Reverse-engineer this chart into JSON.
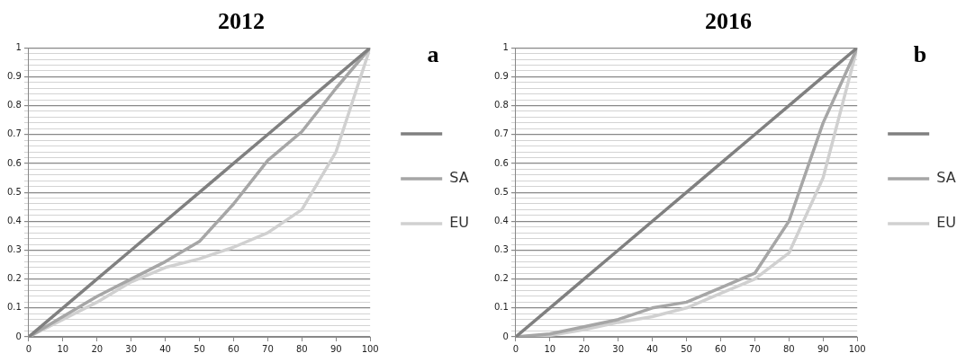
{
  "chart_data": [
    {
      "type": "line",
      "title": "2012",
      "annotations": [
        "a"
      ],
      "x": [
        0,
        10,
        20,
        30,
        40,
        50,
        60,
        70,
        80,
        90,
        100
      ],
      "series": [
        {
          "color": "#808080",
          "values": [
            0,
            0.1,
            0.2,
            0.3,
            0.4,
            0.5,
            0.6,
            0.7,
            0.8,
            0.9,
            1
          ]
        },
        {
          "name": "SA",
          "color": "#a6a6a6",
          "values": [
            0,
            0.07,
            0.14,
            0.2,
            0.26,
            0.33,
            0.46,
            0.61,
            0.71,
            0.86,
            1
          ]
        },
        {
          "name": "EU",
          "color": "#d0d0d0",
          "values": [
            0,
            0.06,
            0.12,
            0.19,
            0.24,
            0.27,
            0.31,
            0.36,
            0.44,
            0.64,
            1
          ]
        }
      ],
      "xlim": [
        0,
        100
      ],
      "xticks": [
        0,
        10,
        20,
        30,
        40,
        50,
        60,
        70,
        80,
        90,
        100
      ],
      "ylim": [
        0,
        1
      ],
      "yticks": [
        0,
        {
          "value": 0.02,
          "label": null
        },
        {
          "value": 0.04,
          "label": null
        },
        {
          "value": 0.06,
          "label": null
        },
        {
          "value": 0.08,
          "label": null
        },
        0.1,
        {
          "value": 0.12,
          "label": null
        },
        {
          "value": 0.14,
          "label": null
        },
        {
          "value": 0.16,
          "label": null
        },
        {
          "value": 0.18,
          "label": null
        },
        0.2,
        {
          "value": 0.22,
          "label": null
        },
        {
          "value": 0.24,
          "label": null
        },
        {
          "value": 0.26,
          "label": null
        },
        {
          "value": 0.28,
          "label": null
        },
        0.3,
        {
          "value": 0.32,
          "label": null
        },
        {
          "value": 0.34,
          "label": null
        },
        {
          "value": 0.36,
          "label": null
        },
        {
          "value": 0.38,
          "label": null
        },
        0.4,
        {
          "value": 0.42,
          "label": null
        },
        {
          "value": 0.44,
          "label": null
        },
        {
          "value": 0.46,
          "label": null
        },
        {
          "value": 0.48,
          "label": null
        },
        0.5,
        {
          "value": 0.52,
          "label": null
        },
        {
          "value": 0.54,
          "label": null
        },
        {
          "value": 0.56,
          "label": null
        },
        {
          "value": 0.58,
          "label": null
        },
        0.6,
        {
          "value": 0.62,
          "label": null
        },
        {
          "value": 0.64,
          "label": null
        },
        {
          "value": 0.66,
          "label": null
        },
        {
          "value": 0.68,
          "label": null
        },
        0.7,
        {
          "value": 0.72,
          "label": null
        },
        {
          "value": 0.74,
          "label": null
        },
        {
          "value": 0.76,
          "label": null
        },
        {
          "value": 0.78,
          "label": null
        },
        0.8,
        {
          "value": 0.82,
          "label": null
        },
        {
          "value": 0.84,
          "label": null
        },
        {
          "value": 0.86,
          "label": null
        },
        {
          "value": 0.88,
          "label": null
        },
        0.9,
        {
          "value": 0.92,
          "label": null
        },
        {
          "value": 0.94,
          "label": null
        },
        {
          "value": 0.96,
          "label": null
        },
        {
          "value": 0.98,
          "label": null
        },
        1
      ],
      "grid": "y",
      "legend": "right",
      "marker": "none",
      "line_style": "solid"
    },
    {
      "type": "line",
      "title": "2016",
      "annotations": [
        "b"
      ],
      "x": [
        0,
        10,
        20,
        30,
        40,
        50,
        60,
        70,
        80,
        90,
        100
      ],
      "series": [
        {
          "color": "#808080",
          "values": [
            0,
            0.1,
            0.2,
            0.3,
            0.4,
            0.5,
            0.6,
            0.7,
            0.8,
            0.9,
            1
          ]
        },
        {
          "name": "SA",
          "color": "#a6a6a6",
          "values": [
            0,
            0.01,
            0.035,
            0.06,
            0.1,
            0.12,
            0.17,
            0.22,
            0.4,
            0.74,
            1
          ]
        },
        {
          "name": "EU",
          "color": "#d0d0d0",
          "values": [
            0,
            0.005,
            0.025,
            0.05,
            0.07,
            0.1,
            0.15,
            0.2,
            0.29,
            0.55,
            1
          ]
        }
      ],
      "xlim": [
        0,
        100
      ],
      "xticks": [
        0,
        10,
        20,
        30,
        40,
        50,
        60,
        70,
        80,
        90,
        100
      ],
      "ylim": [
        0,
        1
      ],
      "yticks": [
        0,
        {
          "value": 0.02,
          "label": null
        },
        {
          "value": 0.04,
          "label": null
        },
        {
          "value": 0.06,
          "label": null
        },
        {
          "value": 0.08,
          "label": null
        },
        0.1,
        {
          "value": 0.12,
          "label": null
        },
        {
          "value": 0.14,
          "label": null
        },
        {
          "value": 0.16,
          "label": null
        },
        {
          "value": 0.18,
          "label": null
        },
        0.2,
        {
          "value": 0.22,
          "label": null
        },
        {
          "value": 0.24,
          "label": null
        },
        {
          "value": 0.26,
          "label": null
        },
        {
          "value": 0.28,
          "label": null
        },
        0.3,
        {
          "value": 0.32,
          "label": null
        },
        {
          "value": 0.34,
          "label": null
        },
        {
          "value": 0.36,
          "label": null
        },
        {
          "value": 0.38,
          "label": null
        },
        0.4,
        {
          "value": 0.42,
          "label": null
        },
        {
          "value": 0.44,
          "label": null
        },
        {
          "value": 0.46,
          "label": null
        },
        {
          "value": 0.48,
          "label": null
        },
        0.5,
        {
          "value": 0.52,
          "label": null
        },
        {
          "value": 0.54,
          "label": null
        },
        {
          "value": 0.56,
          "label": null
        },
        {
          "value": 0.58,
          "label": null
        },
        0.6,
        {
          "value": 0.62,
          "label": null
        },
        {
          "value": 0.64,
          "label": null
        },
        {
          "value": 0.66,
          "label": null
        },
        {
          "value": 0.68,
          "label": null
        },
        0.7,
        {
          "value": 0.72,
          "label": null
        },
        {
          "value": 0.74,
          "label": null
        },
        {
          "value": 0.76,
          "label": null
        },
        {
          "value": 0.78,
          "label": null
        },
        0.8,
        {
          "value": 0.82,
          "label": null
        },
        {
          "value": 0.84,
          "label": null
        },
        {
          "value": 0.86,
          "label": null
        },
        {
          "value": 0.88,
          "label": null
        },
        0.9,
        {
          "value": 0.92,
          "label": null
        },
        {
          "value": 0.94,
          "label": null
        },
        {
          "value": 0.96,
          "label": null
        },
        {
          "value": 0.98,
          "label": null
        },
        1
      ],
      "grid": "y",
      "legend": "right",
      "marker": "none",
      "line_style": "solid"
    }
  ]
}
